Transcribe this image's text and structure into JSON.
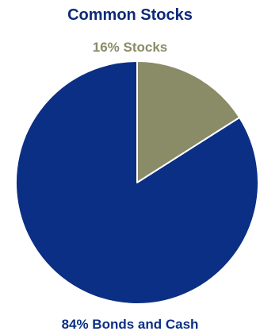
{
  "chart_data": {
    "type": "pie",
    "title": "Common Stocks",
    "slices": [
      {
        "label": "16% Stocks",
        "name": "Stocks",
        "value": 16,
        "color": "#8a8b67"
      },
      {
        "label": "84% Bonds and Cash",
        "name": "Bonds and Cash",
        "value": 84,
        "color": "#0b2f84"
      }
    ],
    "start_angle_deg": 0,
    "direction": "clockwise",
    "border_color": "#ffffff"
  }
}
